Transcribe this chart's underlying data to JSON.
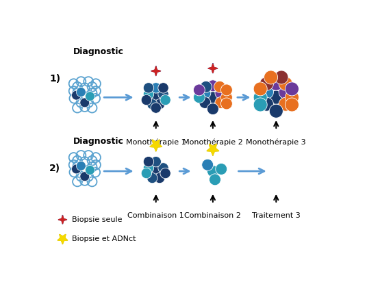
{
  "bg_color": "#ffffff",
  "font_size_title": 9,
  "font_size_label": 8,
  "font_size_section": 10,
  "arrow_color": "#5b9bd5",
  "diag_label": "Diagnostic",
  "section1_label": "1)",
  "section2_label": "2)",
  "label1": [
    "",
    "Monothérapie 1",
    "Monothérapie 2",
    "Monothérapie 3"
  ],
  "label2": [
    "",
    "Combinaison 1",
    "Combinaison 2",
    "Traitement 3"
  ],
  "legend_biopsy_seule": "Biopsie seule",
  "legend_biopsie_adnct": "Biopsie et ADNct",
  "col_dark_navy": "#1a3a6b",
  "col_mid_blue": "#1e5080",
  "col_teal": "#2a9db5",
  "col_blue": "#2a7fb5",
  "col_purple": "#6a3a9b",
  "col_orange": "#e87020",
  "col_brown": "#8b3030",
  "col_light_blue": "#5ba3d0"
}
